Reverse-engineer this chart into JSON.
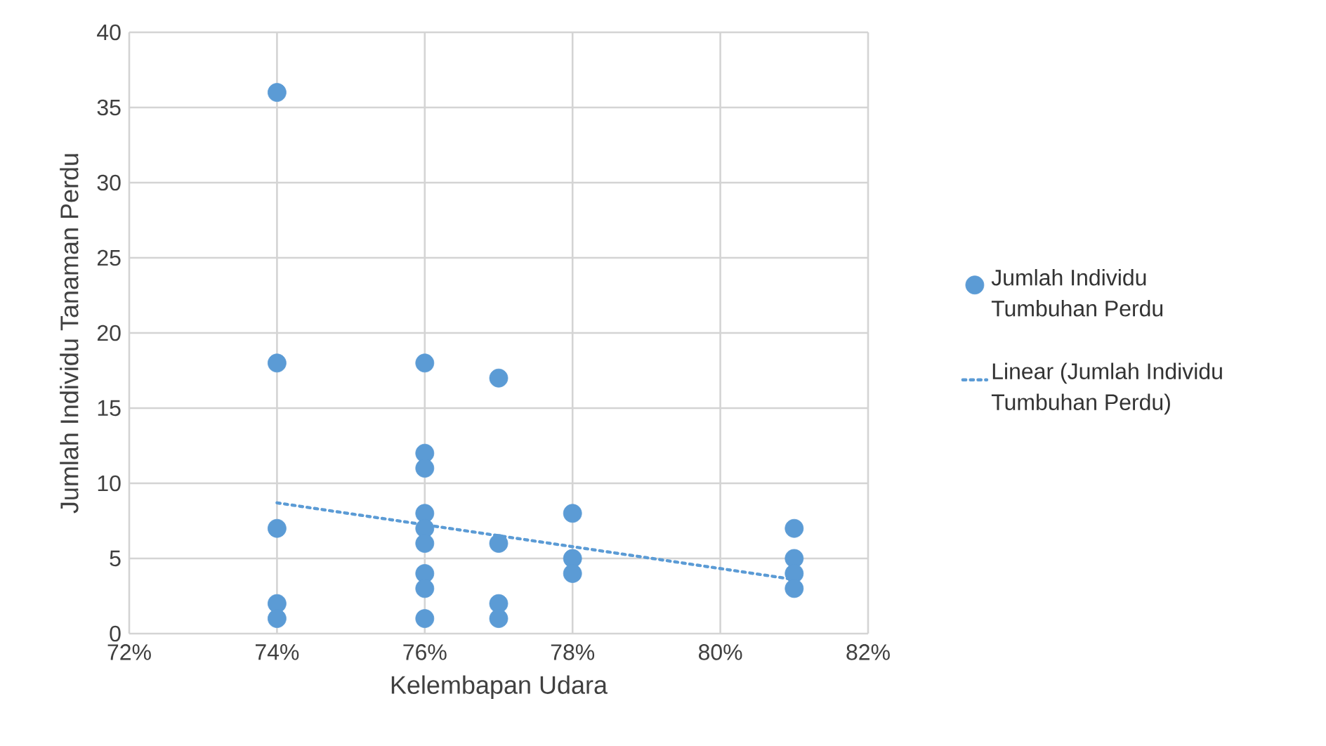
{
  "chart_data": {
    "type": "scatter",
    "xlabel": "Kelembapan Udara",
    "ylabel": "Jumlah Individu Tanaman Perdu",
    "xlim": [
      72,
      82
    ],
    "xticks": [
      {
        "value": 72,
        "label": "72%"
      },
      {
        "value": 74,
        "label": "74%"
      },
      {
        "value": 76,
        "label": "76%"
      },
      {
        "value": 78,
        "label": "78%"
      },
      {
        "value": 80,
        "label": "80%"
      },
      {
        "value": 82,
        "label": "82%"
      }
    ],
    "ylim": [
      0,
      40
    ],
    "yticks": [
      0,
      5,
      10,
      15,
      20,
      25,
      30,
      35,
      40
    ],
    "grid": true,
    "legend": "right",
    "marker": "circle",
    "series": [
      {
        "name": "Jumlah Individu Tumbuhan Perdu",
        "color": "#5b9bd5",
        "x": [
          74,
          74,
          74,
          74,
          74,
          76,
          76,
          76,
          76,
          76,
          76,
          76,
          76,
          76,
          77,
          77,
          77,
          77,
          78,
          78,
          78,
          81,
          81,
          81,
          81
        ],
        "values": [
          36,
          18,
          7,
          2,
          1,
          18,
          12,
          11,
          8,
          7,
          6,
          4,
          3,
          1,
          17,
          6,
          2,
          1,
          8,
          5,
          4,
          7,
          5,
          4,
          3
        ]
      },
      {
        "name": "Linear (Jumlah Individu Tumbuhan Perdu)",
        "type": "line",
        "marker": "none",
        "line_style": "dotted",
        "color": "#5b9bd5",
        "x": [
          74,
          81
        ],
        "values": [
          8.7,
          3.6
        ]
      }
    ]
  }
}
